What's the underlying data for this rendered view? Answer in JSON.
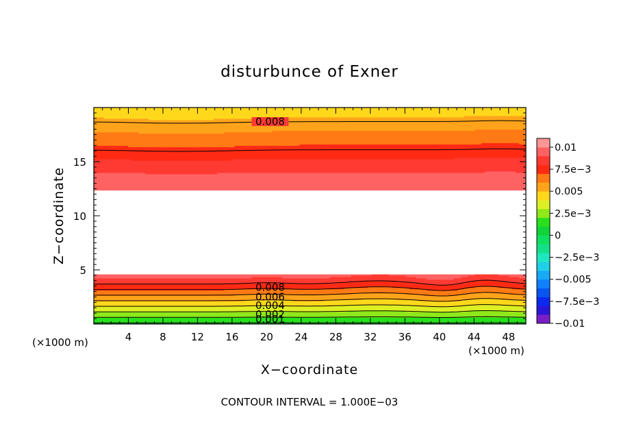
{
  "chart_data": {
    "type": "contour",
    "title": "disturbunce of Exner",
    "xlabel": "X−coordinate",
    "ylabel": "Z−coordinate",
    "x_unit": "(×1000 m)",
    "y_unit": "(×1000 m)",
    "xlim": [
      0,
      50
    ],
    "ylim": [
      0,
      20
    ],
    "xticks": [
      4,
      8,
      12,
      16,
      20,
      24,
      28,
      32,
      36,
      40,
      44,
      48
    ],
    "yticks": [
      5,
      10,
      15
    ],
    "contour_interval_text": "CONTOUR INTERVAL = 1.000E−03",
    "colorbar": {
      "levels": [
        -0.01,
        -0.009,
        -0.008,
        -0.007,
        -0.006,
        -0.005,
        -0.004,
        -0.003,
        -0.002,
        -0.001,
        0,
        0.001,
        0.002,
        0.003,
        0.004,
        0.005,
        0.006,
        0.007,
        0.008,
        0.009,
        0.01
      ],
      "colors": [
        "#7a1fc8",
        "#2a16d8",
        "#0a2aee",
        "#0a55f2",
        "#1080ff",
        "#18aaf5",
        "#20d0e8",
        "#1fe8c0",
        "#14e08a",
        "#10e060",
        "#12d23a",
        "#28e01c",
        "#8ee81a",
        "#dcf024",
        "#ffd81c",
        "#ffa41a",
        "#ff7a14",
        "#ff2a14",
        "#ff3a32",
        "#ff6262",
        "#ff9696"
      ],
      "tick_values": [
        -0.01,
        -0.0075,
        -0.005,
        -0.0025,
        0,
        0.0025,
        0.005,
        0.0075,
        0.01
      ],
      "tick_labels": [
        "−0.01",
        "−7.5e−3",
        "−0.005",
        "−2.5e−3",
        "0",
        "2.5e−3",
        "0.005",
        "7.5e−3",
        "0.01"
      ]
    },
    "contour_labels": [
      {
        "text": "0.008",
        "x": 18.5,
        "y": 18.7
      },
      {
        "text": "0.008",
        "x": 18.5,
        "y": 3.4
      },
      {
        "text": "0.006",
        "x": 18.5,
        "y": 2.5
      },
      {
        "text": "0.004",
        "x": 18.5,
        "y": 1.7
      },
      {
        "text": "0.002",
        "x": 18.5,
        "y": 0.9
      },
      {
        "text": "0.001",
        "x": 18.5,
        "y": 0.45
      }
    ]
  }
}
